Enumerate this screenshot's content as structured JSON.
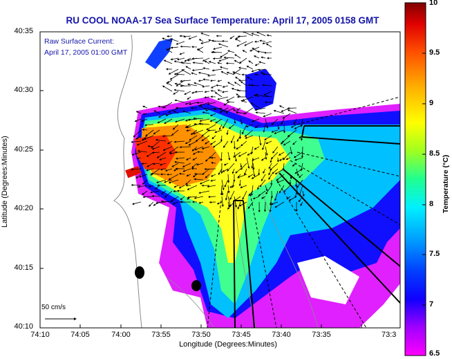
{
  "title": "RU COOL  NOAA-17  Sea Surface Temperature:  April 17, 2005 0158 GMT",
  "annotation": {
    "line1": "Raw Surface Current:",
    "line2": "April 17, 2005 01:00 GMT"
  },
  "axes": {
    "ylabel": "Latitude (Degrees:Minutes)",
    "xlabel": "Longitude (Degrees:Minutes)",
    "yticks": [
      "40:35",
      "40:30",
      "40:25",
      "40:20",
      "40:15",
      "40:10"
    ],
    "xticks": [
      "74:10",
      "74:05",
      "74:00",
      "73:55",
      "73:50",
      "73:45",
      "73:40",
      "73:35",
      "73:3"
    ]
  },
  "colorbar": {
    "label": "Temperature (°C)",
    "ticks": [
      "10",
      "9.5",
      "9",
      "8.5",
      "8",
      "7.5",
      "7",
      "6.5"
    ],
    "min": 6.5,
    "max": 10,
    "colors": [
      "#ff00ff",
      "#7000ff",
      "#0000ff",
      "#0060ff",
      "#00c0ff",
      "#00ffd0",
      "#30ff60",
      "#a0ff00",
      "#ffff00",
      "#ffb000",
      "#ff6000",
      "#ff0000",
      "#800000"
    ]
  },
  "scale_vector": {
    "label": "50 cm/s"
  },
  "colors": {
    "title": "#1414a8",
    "land": "#ffffff",
    "coast": "#888888"
  }
}
